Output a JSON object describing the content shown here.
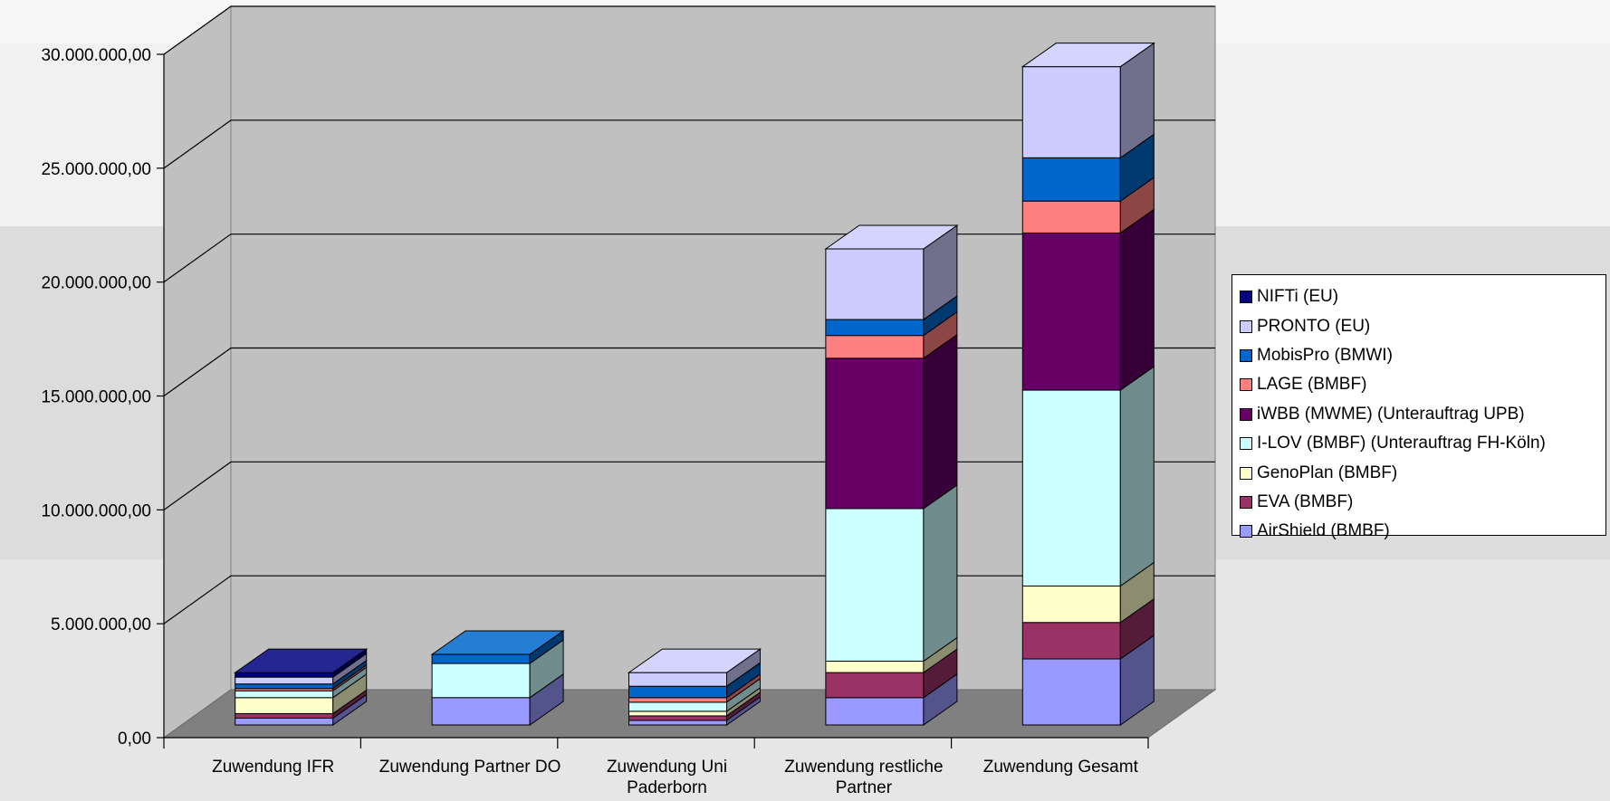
{
  "chart_data": {
    "type": "bar",
    "stacked": true,
    "three_d": true,
    "categories": [
      "Zuwendung IFR",
      "Zuwendung Partner DO",
      "Zuwendung Uni Paderborn",
      "Zuwendung restliche Partner",
      "Zuwendung Gesamt"
    ],
    "ylim": [
      0,
      30000000
    ],
    "yticks": [
      0,
      5000000,
      10000000,
      15000000,
      20000000,
      25000000,
      30000000
    ],
    "ytick_labels": [
      "0,00",
      "5.000.000,00",
      "10.000.000,00",
      "15.000.000,00",
      "20.000.000,00",
      "25.000.000,00",
      "30.000.000,00"
    ],
    "grid": true,
    "legend_position": "right",
    "series": [
      {
        "name": "AirShield (BMBF)",
        "color": "#9999ff",
        "values": [
          300000,
          1200000,
          200000,
          1200000,
          2900000
        ]
      },
      {
        "name": "EVA (BMBF)",
        "color": "#993366",
        "values": [
          200000,
          0,
          200000,
          1100000,
          1600000
        ]
      },
      {
        "name": "GenoPlan (BMBF)",
        "color": "#ffffcc",
        "values": [
          700000,
          0,
          200000,
          500000,
          1600000
        ]
      },
      {
        "name": "I-LOV (BMBF) (Unterauftrag FH-Köln)",
        "color": "#ccffff",
        "values": [
          300000,
          1500000,
          400000,
          6700000,
          8600000
        ]
      },
      {
        "name": "iWBB (MWME) (Unterauftrag UPB)",
        "color": "#660066",
        "values": [
          0,
          0,
          0,
          6600000,
          6900000
        ]
      },
      {
        "name": "LAGE (BMBF)",
        "color": "#ff8080",
        "values": [
          100000,
          0,
          200000,
          1000000,
          1400000
        ]
      },
      {
        "name": "MobisPro (BMWI)",
        "color": "#0066cc",
        "values": [
          200000,
          400000,
          500000,
          700000,
          1900000
        ]
      },
      {
        "name": "PRONTO (EU)",
        "color": "#ccccff",
        "values": [
          300000,
          0,
          600000,
          3100000,
          4000000
        ]
      },
      {
        "name": "NIFTi (EU)",
        "color": "#000080",
        "values": [
          200000,
          0,
          0,
          0,
          0
        ]
      }
    ]
  },
  "legend": {
    "items": [
      {
        "label": "NIFTi (EU)",
        "color": "#000080"
      },
      {
        "label": "PRONTO (EU)",
        "color": "#ccccff"
      },
      {
        "label": "MobisPro (BMWI)",
        "color": "#0066cc"
      },
      {
        "label": "LAGE (BMBF)",
        "color": "#ff8080"
      },
      {
        "label": "iWBB (MWME) (Unterauftrag UPB)",
        "color": "#660066"
      },
      {
        "label": "I-LOV (BMBF) (Unterauftrag FH-Köln)",
        "color": "#ccffff"
      },
      {
        "label": "GenoPlan (BMBF)",
        "color": "#ffffcc"
      },
      {
        "label": "EVA (BMBF)",
        "color": "#993366"
      },
      {
        "label": "AirShield (BMBF)",
        "color": "#9999ff"
      }
    ]
  },
  "colors": {
    "page_background": "#ededed",
    "wall": "#c0c0c0",
    "floor": "#808080"
  }
}
